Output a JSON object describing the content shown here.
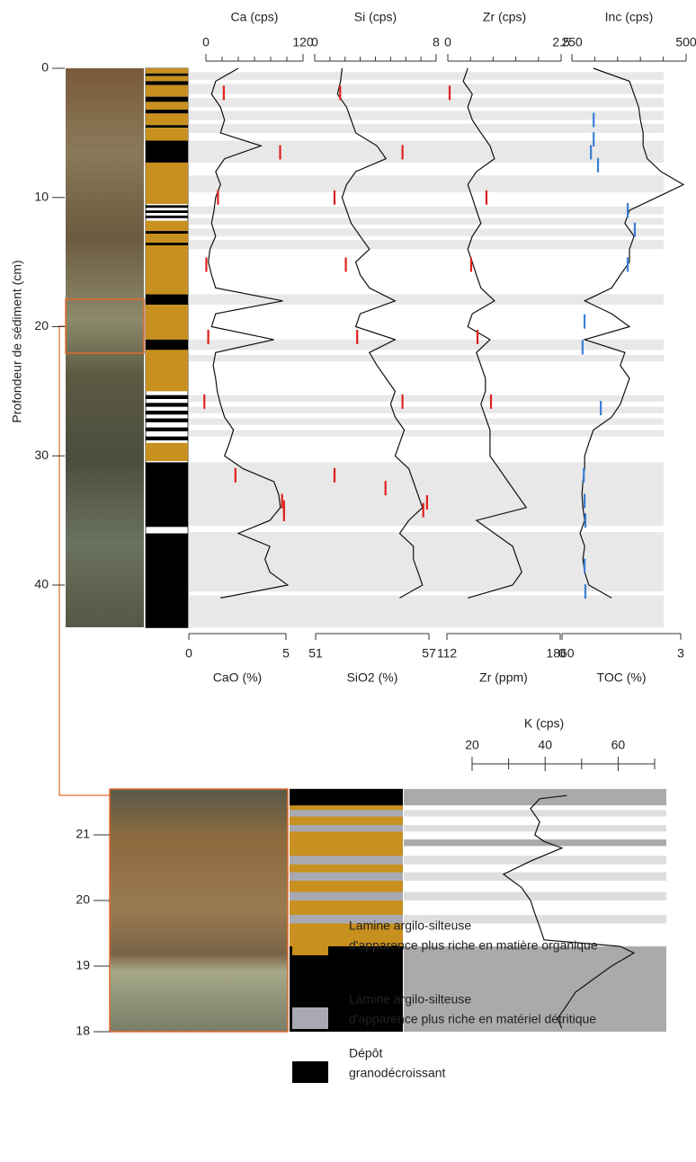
{
  "chart_data": [
    {
      "type": "depth-profile",
      "ylabel": "Profondeur de sédiment (cm)",
      "ylim": [
        0,
        43.3
      ],
      "yticks": [
        0,
        10,
        20,
        30,
        40
      ],
      "depth": [
        0,
        1,
        2,
        3,
        4,
        5,
        6,
        7,
        8,
        9,
        10,
        11,
        12,
        13,
        14,
        15,
        16,
        17,
        18,
        19,
        20,
        21,
        22,
        23,
        24,
        25,
        26,
        27,
        28,
        29,
        30,
        31,
        32,
        33,
        34,
        35,
        36,
        37,
        38,
        39,
        40,
        41
      ],
      "shaded": [
        [
          0.3,
          0.9
        ],
        [
          1.2,
          2.0
        ],
        [
          2.3,
          3.0
        ],
        [
          3.3,
          4.0
        ],
        [
          4.3,
          5.0
        ],
        [
          5.6,
          7.3
        ],
        [
          8.3,
          9.6
        ],
        [
          10.7,
          11.3
        ],
        [
          11.6,
          12.1
        ],
        [
          12.4,
          13.0
        ],
        [
          13.3,
          14.0
        ],
        [
          17.5,
          18.3
        ],
        [
          21.0,
          21.8
        ],
        [
          22.2,
          22.7
        ],
        [
          25.3,
          25.8
        ],
        [
          26.2,
          26.7
        ],
        [
          27.1,
          27.6
        ],
        [
          28.0,
          28.5
        ],
        [
          30.5,
          35.4
        ],
        [
          35.9,
          40.5
        ],
        [
          40.8,
          43.3
        ]
      ],
      "lithology": [
        {
          "from": 0,
          "to": 0.4,
          "unit": 0
        },
        {
          "from": 0.4,
          "to": 0.6,
          "unit": 2
        },
        {
          "from": 0.6,
          "to": 1.0,
          "unit": 0
        },
        {
          "from": 1.0,
          "to": 1.3,
          "unit": 2
        },
        {
          "from": 1.3,
          "to": 2.2,
          "unit": 0
        },
        {
          "from": 2.2,
          "to": 2.6,
          "unit": 2
        },
        {
          "from": 2.6,
          "to": 3.2,
          "unit": 0
        },
        {
          "from": 3.2,
          "to": 3.5,
          "unit": 2
        },
        {
          "from": 3.5,
          "to": 4.4,
          "unit": 0
        },
        {
          "from": 4.4,
          "to": 4.6,
          "unit": 2
        },
        {
          "from": 4.6,
          "to": 5.6,
          "unit": 0
        },
        {
          "from": 5.6,
          "to": 7.3,
          "unit": 2
        },
        {
          "from": 7.3,
          "to": 10.5,
          "unit": 0
        },
        {
          "from": 10.6,
          "to": 10.8,
          "unit": 2
        },
        {
          "from": 11.0,
          "to": 11.2,
          "unit": 2
        },
        {
          "from": 11.4,
          "to": 11.6,
          "unit": 2
        },
        {
          "from": 11.8,
          "to": 17.5,
          "unit": 0
        },
        {
          "from": 12.6,
          "to": 12.8,
          "unit": 2
        },
        {
          "from": 13.5,
          "to": 13.7,
          "unit": 2
        },
        {
          "from": 17.5,
          "to": 18.3,
          "unit": 2
        },
        {
          "from": 18.3,
          "to": 21.0,
          "unit": 0
        },
        {
          "from": 21.0,
          "to": 21.8,
          "unit": 2
        },
        {
          "from": 21.8,
          "to": 25.0,
          "unit": 0
        },
        {
          "from": 25.3,
          "to": 25.6,
          "unit": 2
        },
        {
          "from": 25.9,
          "to": 26.2,
          "unit": 2
        },
        {
          "from": 26.5,
          "to": 26.8,
          "unit": 2
        },
        {
          "from": 27.1,
          "to": 27.4,
          "unit": 2
        },
        {
          "from": 27.8,
          "to": 28.1,
          "unit": 2
        },
        {
          "from": 28.5,
          "to": 28.8,
          "unit": 2
        },
        {
          "from": 29.0,
          "to": 30.4,
          "unit": 0
        },
        {
          "from": 30.5,
          "to": 35.5,
          "unit": 2
        },
        {
          "from": 36.0,
          "to": 43.3,
          "unit": 2
        }
      ],
      "tracks": [
        {
          "title": "Ca (cps)",
          "xlim": [
            0,
            120
          ],
          "xticks": [
            0,
            120
          ],
          "xminorticks": [
            20,
            40,
            60,
            80,
            100
          ],
          "color": "#111",
          "values": [
            40,
            12,
            7,
            18,
            23,
            18,
            68,
            23,
            12,
            18,
            12,
            10,
            7,
            12,
            5,
            3,
            7,
            12,
            95,
            12,
            7,
            84,
            12,
            9,
            12,
            14,
            18,
            23,
            34,
            29,
            23,
            46,
            84,
            90,
            92,
            79,
            40,
            79,
            73,
            79,
            101,
            18
          ],
          "marker_label": "CaO (%)",
          "marker_xlim": [
            0,
            5
          ],
          "marker_xticks": [
            0,
            5
          ],
          "marker_color": "#e0211c",
          "marker_depth": [
            1.9,
            6.5,
            10,
            15.2,
            20.8,
            25.8,
            31.5,
            33.5,
            34,
            34.5
          ],
          "marker_values": [
            1.8,
            4.7,
            1.5,
            0.9,
            1.0,
            0.8,
            2.4,
            4.8,
            4.9,
            4.9
          ]
        },
        {
          "title": "Si (cps)",
          "xlim": [
            0,
            8
          ],
          "xticks": [
            0,
            8
          ],
          "xminorticks": [
            1,
            2,
            3,
            4,
            5,
            6,
            7
          ],
          "color": "#111",
          "values": [
            1.8,
            1.7,
            1.5,
            2.1,
            2.4,
            2.7,
            4.1,
            4.7,
            2.7,
            2.1,
            1.8,
            2.1,
            2.4,
            3.0,
            3.6,
            2.7,
            3.0,
            3.6,
            5.3,
            3.0,
            2.7,
            5.3,
            3.6,
            4.1,
            4.7,
            5.3,
            5.0,
            5.3,
            5.9,
            5.6,
            5.3,
            6.2,
            6.5,
            6.8,
            7.1,
            6.2,
            5.6,
            6.5,
            6.5,
            6.8,
            7.1,
            5.6
          ],
          "marker_label": "SiO2 (%)",
          "marker_xlim": [
            51,
            57
          ],
          "marker_xticks": [
            51,
            57
          ],
          "marker_color": "#e0211c",
          "marker_depth": [
            1.9,
            6.5,
            10,
            15.2,
            20.8,
            25.8,
            31.5,
            32.5,
            33.6,
            34.2
          ],
          "marker_values": [
            52.3,
            55.6,
            52.0,
            52.6,
            53.2,
            55.6,
            52.0,
            54.7,
            56.9,
            56.7
          ]
        },
        {
          "title": "Zr (cps)",
          "xlim": [
            0,
            2.5
          ],
          "xticks": [
            0,
            2.5
          ],
          "xminorticks": [
            0.5,
            1,
            1.5,
            2
          ],
          "color": "#111",
          "values": [
            0.44,
            0.34,
            0.54,
            0.44,
            0.54,
            0.73,
            0.93,
            1.03,
            0.63,
            0.44,
            0.54,
            0.63,
            0.73,
            0.54,
            0.44,
            0.54,
            0.63,
            0.73,
            1.03,
            0.54,
            0.44,
            0.93,
            0.63,
            0.73,
            0.83,
            0.83,
            0.73,
            0.83,
            0.93,
            0.93,
            0.93,
            1.13,
            1.33,
            1.53,
            1.73,
            0.63,
            1.03,
            1.43,
            1.53,
            1.63,
            1.43,
            0.44
          ],
          "marker_label": "Zr (ppm)",
          "marker_xlim": [
            112,
            1860
          ],
          "marker_xticks": [
            112,
            1860
          ],
          "marker_color": "#e0211c",
          "marker_depth": [
            1.9,
            10,
            15.2,
            20.8,
            25.8
          ],
          "marker_values": [
            154,
            722,
            486,
            584,
            792
          ]
        },
        {
          "title": "Inc (cps)",
          "xlim": [
            250,
            500
          ],
          "xticks": [
            250,
            500
          ],
          "xminorticks": [
            300,
            350,
            400,
            450
          ],
          "color": "#111",
          "values": [
            297,
            376,
            386,
            396,
            400,
            406,
            406,
            415,
            445,
            494,
            435,
            376,
            366,
            386,
            376,
            376,
            356,
            337,
            278,
            337,
            376,
            278,
            366,
            356,
            376,
            366,
            356,
            337,
            297,
            287,
            278,
            278,
            274,
            272,
            274,
            278,
            268,
            278,
            274,
            278,
            287,
            337
          ],
          "marker_label": "TOC (%)",
          "marker_xlim": [
            0,
            3
          ],
          "marker_xticks": [
            0,
            3
          ],
          "marker_color": "#3a7fd5",
          "marker_depth": [
            4,
            5.5,
            6.5,
            7.5,
            11,
            12.5,
            15.2,
            19.6,
            21.6,
            26.3,
            31.5,
            33.5,
            35,
            38.5,
            40.5
          ],
          "marker_values": [
            0.8,
            0.8,
            0.73,
            0.91,
            1.66,
            1.84,
            1.66,
            0.57,
            0.52,
            0.98,
            0.55,
            0.57,
            0.59,
            0.57,
            0.59
          ]
        }
      ]
    },
    {
      "type": "depth-profile-inset",
      "title": "K (cps)",
      "xlim": [
        20,
        70
      ],
      "xticks": [
        20,
        40,
        60
      ],
      "xminorticks": [
        30,
        50,
        70
      ],
      "color": "#111",
      "ylim": [
        18,
        21.7
      ],
      "yticks": [
        18,
        19,
        20,
        21
      ],
      "depth": [
        21.6,
        21.55,
        21.4,
        21.2,
        21.0,
        20.9,
        20.8,
        20.6,
        20.4,
        20.2,
        20.0,
        19.8,
        19.6,
        19.4,
        19.3,
        19.2,
        19.0,
        18.8,
        18.6,
        18.4,
        18.2,
        18.05
      ],
      "values": [
        45.9,
        38.5,
        36.0,
        38.5,
        37.2,
        39.7,
        44.6,
        36.0,
        28.6,
        33.5,
        36.0,
        37.2,
        38.5,
        39.7,
        60.6,
        64.3,
        58.2,
        53.2,
        48.3,
        45.9,
        43.4,
        44.6
      ],
      "shaded": [
        [
          21.45,
          21.7
        ],
        [
          20.83,
          20.93
        ],
        [
          18.0,
          19.3
        ]
      ],
      "shaded_light": [
        [
          21.28,
          21.38
        ],
        [
          21.05,
          21.15
        ],
        [
          20.55,
          20.68
        ],
        [
          20.3,
          20.43
        ],
        [
          20.0,
          20.13
        ],
        [
          19.65,
          19.78
        ]
      ],
      "lithology": [
        {
          "from": 21.45,
          "to": 21.7,
          "unit": 2
        },
        {
          "from": 19.3,
          "to": 21.45,
          "unit": 0
        },
        {
          "from": 21.28,
          "to": 21.38,
          "unit": 1
        },
        {
          "from": 21.05,
          "to": 21.15,
          "unit": 1
        },
        {
          "from": 20.55,
          "to": 20.68,
          "unit": 1
        },
        {
          "from": 20.3,
          "to": 20.43,
          "unit": 1
        },
        {
          "from": 20.0,
          "to": 20.13,
          "unit": 1
        },
        {
          "from": 19.65,
          "to": 19.78,
          "unit": 1
        },
        {
          "from": 18.0,
          "to": 19.3,
          "unit": 2
        }
      ]
    }
  ],
  "legend": [
    {
      "lines": [
        "Lamine argilo-silteuse",
        "d'apparence plus riche en matière organique"
      ],
      "color": "#c8901e"
    },
    {
      "lines": [
        "Lamine argilo-silteuse",
        "d'apparence plus riche en matériel détritique"
      ],
      "color": "#a9a9b2"
    },
    {
      "lines": [
        "Dépôt",
        "granodécroissant"
      ],
      "color": "#000000"
    }
  ]
}
